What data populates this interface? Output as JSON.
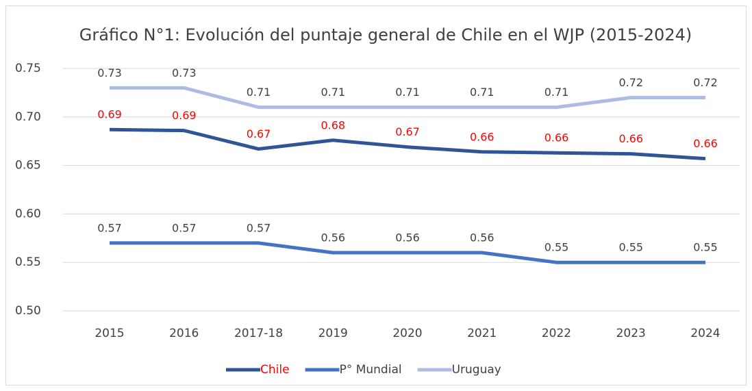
{
  "chart_data": {
    "type": "line",
    "title": "Gráfico N°1: Evolución del puntaje general de Chile en el WJP (2015-2024)",
    "categories": [
      "2015",
      "2016",
      "2017-18",
      "2019",
      "2020",
      "2021",
      "2022",
      "2023",
      "2024"
    ],
    "series": [
      {
        "name": "Chile",
        "color": "#2f5597",
        "label_color": "#ff0000",
        "values": [
          0.687,
          0.686,
          0.667,
          0.676,
          0.669,
          0.664,
          0.663,
          0.662,
          0.657
        ],
        "value_labels": [
          "0.69",
          "0.69",
          "0.67",
          "0.68",
          "0.67",
          "0.66",
          "0.66",
          "0.66",
          "0.66"
        ]
      },
      {
        "name": "P° Mundial",
        "color": "#4472c4",
        "values": [
          0.57,
          0.57,
          0.57,
          0.56,
          0.56,
          0.56,
          0.55,
          0.55,
          0.55
        ]
      },
      {
        "name": "Uruguay",
        "color": "#aebce3",
        "values": [
          0.73,
          0.73,
          0.71,
          0.71,
          0.71,
          0.71,
          0.71,
          0.72,
          0.72
        ]
      }
    ],
    "ylim": [
      0.5,
      0.75
    ],
    "yticks": [
      {
        "value": 0.5,
        "label": "0.50"
      },
      0.55,
      {
        "value": 0.6,
        "label": "0.60"
      },
      0.65,
      {
        "value": 0.7,
        "label": "0.70"
      },
      0.75
    ],
    "grid": true,
    "legend": "bottom"
  }
}
